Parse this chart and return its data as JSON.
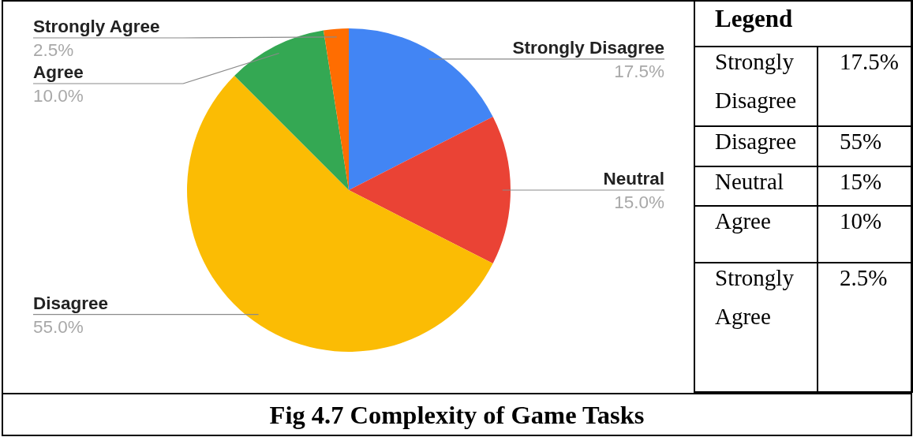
{
  "chart_data": [
    {
      "type": "pie",
      "title": "Fig 4.7 Complexity of Game Tasks",
      "categories": [
        "Strongly Disagree",
        "Neutral",
        "Disagree",
        "Agree",
        "Strongly Agree"
      ],
      "values": [
        17.5,
        15,
        55,
        10,
        2.5
      ],
      "colors": [
        "#4285f4",
        "#ea4335",
        "#fbbc04",
        "#34a853",
        "#ff6d01"
      ],
      "value_labels": [
        "17.5%",
        "15.0%",
        "55.0%",
        "10.0%",
        "2.5%"
      ]
    },
    {
      "type": "other",
      "title": "Legend",
      "annotations": [
        "Strongly Disagree",
        "17.5%",
        "Disagree",
        "55%",
        "Neutral",
        "15%",
        "Agree",
        "10%",
        "Strongly Agree",
        "2.5%"
      ]
    }
  ]
}
